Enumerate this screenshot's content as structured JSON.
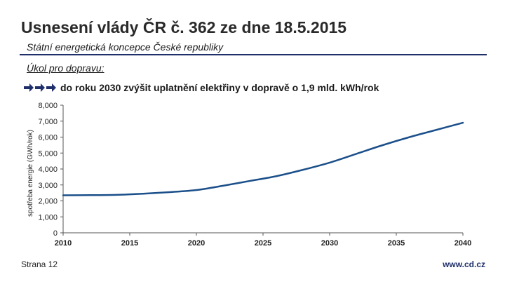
{
  "slide": {
    "title": "Usnesení vlády ČR č. 362 ze dne 18.5.2015",
    "subtitle": "Státní energetická koncepce České republiky",
    "task_heading": "Úkol pro dopravu:",
    "task_text": "do roku 2030 zvýšit uplatnění elektřiny v dopravě o 1,9 mld. kWh/rok",
    "bullet_icon": "triple-right-arrow-icon",
    "accent_color": "#1f2f6a",
    "line_color": "#1b4f8a"
  },
  "footer": {
    "page_label": "Strana 12",
    "url": "www.cd.cz"
  },
  "chart_data": {
    "type": "line",
    "title": "",
    "xlabel": "",
    "ylabel": "spotřeba energie (GWh/rok)",
    "x": [
      2010,
      2012,
      2014,
      2016,
      2018,
      2020,
      2022,
      2024,
      2026,
      2028,
      2030,
      2032,
      2034,
      2036,
      2038,
      2040
    ],
    "series": [
      {
        "values": [
          2350,
          2360,
          2380,
          2450,
          2550,
          2680,
          2950,
          3250,
          3550,
          3950,
          4400,
          4950,
          5500,
          6000,
          6450,
          6900
        ]
      }
    ],
    "xlim": [
      2010,
      2040
    ],
    "ylim": [
      0,
      8000
    ],
    "x_ticks": [
      2010,
      2015,
      2020,
      2025,
      2030,
      2035,
      2040
    ],
    "y_ticks": [
      0,
      1000,
      2000,
      3000,
      4000,
      5000,
      6000,
      7000,
      8000
    ],
    "x_tick_labels": [
      "2010",
      "2015",
      "2020",
      "2025",
      "2030",
      "2035",
      "2040"
    ],
    "y_tick_labels": [
      "0",
      "1,000",
      "2,000",
      "3,000",
      "4,000",
      "5,000",
      "6,000",
      "7,000",
      "8,000"
    ],
    "grid": false,
    "legend": "none"
  }
}
